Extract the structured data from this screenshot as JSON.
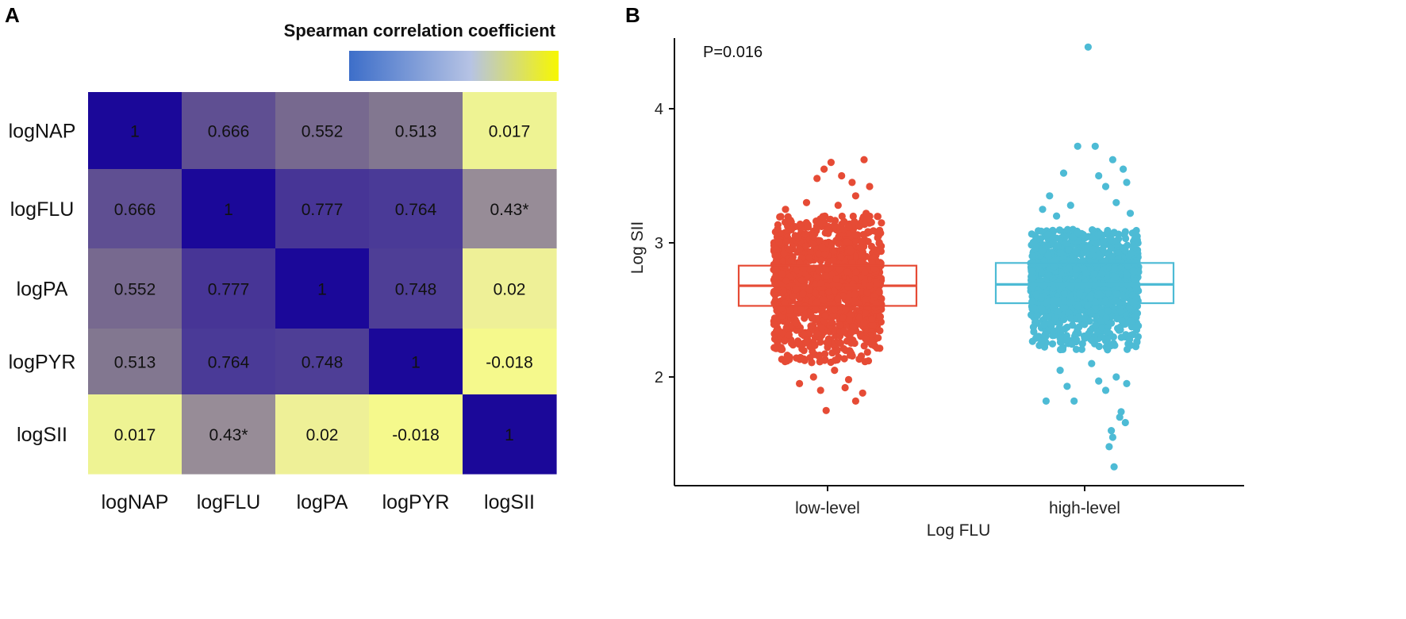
{
  "panels": {
    "a_label": "A",
    "b_label": "B"
  },
  "chart_data": [
    {
      "type": "heatmap",
      "title": "Spearman correlation coefficient",
      "row_labels": [
        "logNAP",
        "logFLU",
        "logPA",
        "logPYR",
        "logSII"
      ],
      "col_labels": [
        "logNAP",
        "logFLU",
        "logPA",
        "logPYR",
        "logSII"
      ],
      "values": [
        [
          1,
          0.666,
          0.552,
          0.513,
          0.017
        ],
        [
          0.666,
          1,
          0.777,
          0.764,
          0.43
        ],
        [
          0.552,
          0.777,
          1,
          0.748,
          0.02
        ],
        [
          0.513,
          0.764,
          0.748,
          1,
          -0.018
        ],
        [
          0.017,
          0.43,
          0.02,
          -0.018,
          1
        ]
      ],
      "cell_labels": [
        [
          "1",
          "0.666",
          "0.552",
          "0.513",
          "0.017"
        ],
        [
          "0.666",
          "1",
          "0.777",
          "0.764",
          "0.43*"
        ],
        [
          "0.552",
          "0.777",
          "1",
          "0.748",
          "0.02"
        ],
        [
          "0.513",
          "0.764",
          "0.748",
          "1",
          "-0.018"
        ],
        [
          "0.017",
          "0.43*",
          "0.02",
          "-0.018",
          "1"
        ]
      ],
      "colors": {
        "1": "#1b0899",
        "0.777": "#473596",
        "0.764": "#4a3a97",
        "0.748": "#4e3e96",
        "0.666": "#5f4f92",
        "0.552": "#77698f",
        "0.513": "#827790",
        "0.43": "#978c97",
        "0.02": "#eef097",
        "0.017": "#eef393",
        "-0.018": "#f5f98c"
      },
      "colorbar": {
        "stops": [
          "#3d6ec9",
          "#b6c3e4",
          "#f7f700"
        ]
      }
    },
    {
      "type": "scatter",
      "subtype": "box-jitter",
      "xlabel": "Log FLU",
      "ylabel": "Log SII",
      "categories": [
        "low-level",
        "high-level"
      ],
      "y_ticks": [
        2,
        3,
        4
      ],
      "ylim": [
        1.2,
        4.55
      ],
      "annotation": "P=0.016",
      "series": [
        {
          "name": "low-level",
          "color": "#e64b35",
          "box": {
            "q1": 2.53,
            "median": 2.68,
            "q3": 2.83
          },
          "core_range": [
            2.1,
            3.2
          ],
          "outlier_points": [
            [
              0.05,
              3.6
            ],
            [
              0.52,
              3.62
            ],
            [
              -0.05,
              3.55
            ],
            [
              0.2,
              3.5
            ],
            [
              -0.15,
              3.48
            ],
            [
              0.35,
              3.45
            ],
            [
              0.6,
              3.42
            ],
            [
              0.4,
              3.35
            ],
            [
              -0.3,
              3.3
            ],
            [
              0.15,
              3.28
            ],
            [
              -0.6,
              3.25
            ],
            [
              0.55,
              3.22
            ],
            [
              0.1,
              2.05
            ],
            [
              -0.2,
              2.0
            ],
            [
              0.3,
              1.98
            ],
            [
              -0.4,
              1.95
            ],
            [
              0.25,
              1.92
            ],
            [
              -0.1,
              1.9
            ],
            [
              0.5,
              1.88
            ],
            [
              0.4,
              1.82
            ],
            [
              -0.02,
              1.75
            ]
          ]
        },
        {
          "name": "high-level",
          "color": "#4dbbd5",
          "box": {
            "q1": 2.55,
            "median": 2.69,
            "q3": 2.85
          },
          "core_range": [
            2.2,
            3.1
          ],
          "outlier_points": [
            [
              0.05,
              4.46
            ],
            [
              -0.1,
              3.72
            ],
            [
              0.15,
              3.72
            ],
            [
              0.4,
              3.62
            ],
            [
              0.55,
              3.55
            ],
            [
              -0.3,
              3.52
            ],
            [
              0.2,
              3.5
            ],
            [
              0.6,
              3.45
            ],
            [
              0.3,
              3.42
            ],
            [
              -0.5,
              3.35
            ],
            [
              0.45,
              3.3
            ],
            [
              -0.2,
              3.28
            ],
            [
              -0.6,
              3.25
            ],
            [
              0.65,
              3.22
            ],
            [
              -0.4,
              3.2
            ],
            [
              0.1,
              2.1
            ],
            [
              -0.35,
              2.05
            ],
            [
              0.45,
              2.0
            ],
            [
              0.2,
              1.97
            ],
            [
              0.6,
              1.95
            ],
            [
              -0.25,
              1.93
            ],
            [
              0.3,
              1.9
            ],
            [
              -0.55,
              1.82
            ],
            [
              -0.15,
              1.82
            ],
            [
              0.52,
              1.74
            ],
            [
              0.5,
              1.7
            ],
            [
              0.58,
              1.66
            ],
            [
              0.38,
              1.6
            ],
            [
              0.4,
              1.55
            ],
            [
              0.35,
              1.48
            ],
            [
              0.42,
              1.33
            ]
          ]
        }
      ]
    }
  ]
}
